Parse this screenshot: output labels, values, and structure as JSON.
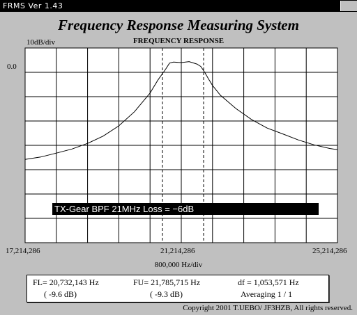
{
  "window": {
    "title": "FRMS  Ver 1.43"
  },
  "app": {
    "title": "Frequency Response Measuring System"
  },
  "chart_data": {
    "type": "line",
    "title": "FREQUENCY RESPONSE",
    "y_scale_label": "10dB/div",
    "y_reference_label": "0.0",
    "x_tick_labels": [
      "17,214,286",
      "21,214,286",
      "25,214,286"
    ],
    "x_scale_label": "800,000  Hz/div",
    "xlim": [
      17214286,
      25214286
    ],
    "ylim": [
      -80,
      0
    ],
    "grid": true,
    "markers": [
      20732143,
      21785715
    ],
    "annotation": "TX-Gear  BPF  21MHz  Loss = −6dB",
    "series": [
      {
        "x": [
          17214286,
          17614286,
          18014286,
          18414286,
          18814286,
          19214286,
          19614286,
          20014286,
          20414286,
          20614286,
          20814286,
          20914286,
          21014286,
          21214286,
          21414286,
          21614286,
          21714286,
          21814286,
          21914286,
          22014286,
          22214286,
          22614286,
          23014286,
          23414286,
          23814286,
          24214286,
          24614286,
          25014286,
          25214286
        ],
        "y": [
          -45.8,
          -44.8,
          -43.2,
          -41.5,
          -39.2,
          -36.2,
          -32.0,
          -26.2,
          -18.5,
          -13.2,
          -8.7,
          -6.2,
          -5.8,
          -6.0,
          -5.6,
          -6.6,
          -7.6,
          -10.0,
          -12.8,
          -15.4,
          -19.4,
          -24.9,
          -29.4,
          -32.9,
          -35.3,
          -37.8,
          -39.8,
          -41.3,
          -41.8
        ]
      }
    ]
  },
  "status": {
    "fl": "FL= 20,732,143  Hz",
    "fu": "FU= 21,785,715  Hz",
    "df": "df = 1,053,571  Hz",
    "fl_db": "( -9.6 dB)",
    "fu_db": "( -9.3 dB)",
    "averaging": "Averaging   1 / 1"
  },
  "copyright": "Copyright 2001 T.UEBO/ JF3HZB, All rights reserved."
}
